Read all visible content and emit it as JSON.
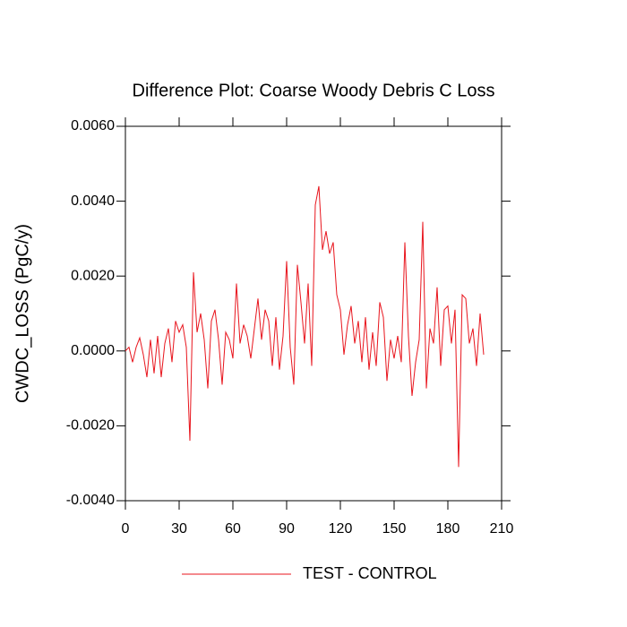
{
  "chart_data": {
    "type": "line",
    "title": "Difference Plot: Coarse Woody Debris C Loss",
    "y_label": "CWDC_LOSS  (PgC/y)",
    "x": [
      0,
      2,
      4,
      6,
      8,
      10,
      12,
      14,
      16,
      18,
      20,
      22,
      24,
      26,
      28,
      30,
      32,
      34,
      36,
      38,
      40,
      42,
      44,
      46,
      48,
      50,
      52,
      54,
      56,
      58,
      60,
      62,
      64,
      66,
      68,
      70,
      72,
      74,
      76,
      78,
      80,
      82,
      84,
      86,
      88,
      90,
      92,
      94,
      96,
      98,
      100,
      102,
      104,
      106,
      108,
      110,
      112,
      114,
      116,
      118,
      120,
      122,
      124,
      126,
      128,
      130,
      132,
      134,
      136,
      138,
      140,
      142,
      144,
      146,
      148,
      150,
      152,
      154,
      156,
      158,
      160,
      162,
      164,
      166,
      168,
      170,
      172,
      174,
      176,
      178,
      180,
      182,
      184,
      186,
      188,
      190,
      192,
      194,
      196,
      198,
      200
    ],
    "series": [
      {
        "name": "TEST - CONTROL",
        "color": "#e8141c",
        "values": [
          0.0,
          0.0001,
          -0.0003,
          0.0001,
          0.00035,
          -0.0001,
          -0.0007,
          0.0003,
          -0.0006,
          0.0004,
          -0.0007,
          0.0002,
          0.0006,
          -0.0003,
          0.0008,
          0.0005,
          0.0007,
          0.0001,
          -0.0024,
          0.0021,
          0.0005,
          0.001,
          0.0003,
          -0.001,
          0.0008,
          0.0011,
          0.0003,
          -0.0009,
          0.0005,
          0.0003,
          -0.0002,
          0.0018,
          0.0002,
          0.0007,
          0.0004,
          -0.0002,
          0.0006,
          0.0014,
          0.0003,
          0.0011,
          0.0008,
          -0.0004,
          0.0009,
          -0.0005,
          0.0004,
          0.0024,
          0.0001,
          -0.0009,
          0.0023,
          0.0013,
          0.0002,
          0.0018,
          -0.0004,
          0.0039,
          0.0044,
          0.0027,
          0.0032,
          0.0026,
          0.0029,
          0.0015,
          0.0011,
          -0.0001,
          0.0007,
          0.0012,
          0.0002,
          0.0008,
          -0.0003,
          0.0009,
          -0.0005,
          0.0005,
          -0.0004,
          0.0013,
          0.0009,
          -0.0008,
          0.0003,
          -0.0002,
          0.0004,
          -0.0003,
          0.0029,
          0.0004,
          -0.0012,
          -0.0003,
          0.0003,
          0.00345,
          -0.001,
          0.0006,
          0.0002,
          0.0017,
          -0.0004,
          0.0011,
          0.0012,
          0.0002,
          0.0011,
          -0.0031,
          0.0015,
          0.0014,
          0.0002,
          0.0006,
          -0.0004,
          0.001,
          -0.0001
        ]
      }
    ],
    "xlim": [
      0,
      210
    ],
    "xticks": [
      0,
      30,
      60,
      90,
      120,
      150,
      180,
      210
    ],
    "ylim": [
      -0.004,
      0.006
    ],
    "yticks": [
      {
        "value": -0.004,
        "label": "-0.0040"
      },
      {
        "value": -0.002,
        "label": "-0.0020"
      },
      {
        "value": 0,
        "label": "0.0000"
      },
      {
        "value": 0.002,
        "label": "0.0020"
      },
      {
        "value": 0.004,
        "label": "0.0040"
      },
      {
        "value": 0.006,
        "label": "0.0060"
      }
    ]
  }
}
